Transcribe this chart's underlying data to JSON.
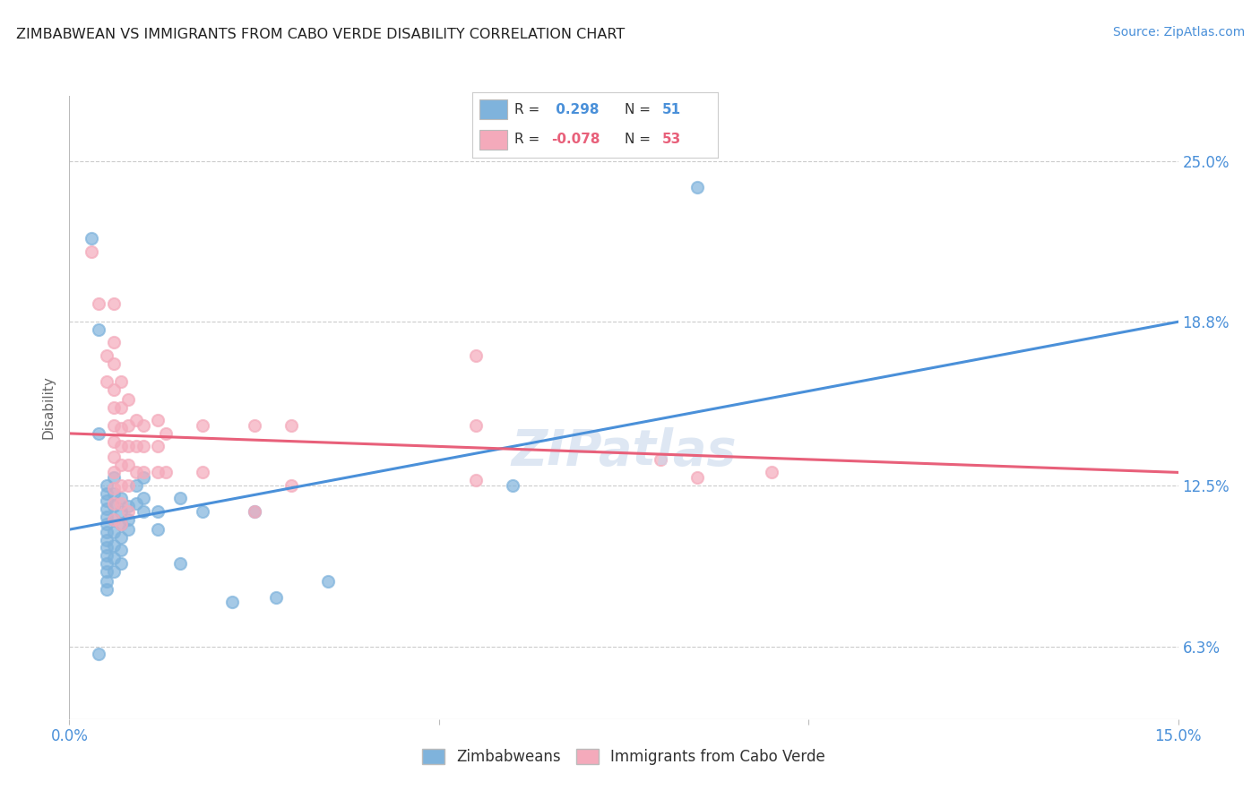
{
  "title": "ZIMBABWEAN VS IMMIGRANTS FROM CABO VERDE DISABILITY CORRELATION CHART",
  "source": "Source: ZipAtlas.com",
  "ylabel": "Disability",
  "ytick_labels": [
    "6.3%",
    "12.5%",
    "18.8%",
    "25.0%"
  ],
  "ytick_values": [
    0.063,
    0.125,
    0.188,
    0.25
  ],
  "xlim": [
    0.0,
    0.15
  ],
  "ylim": [
    0.035,
    0.275
  ],
  "legend_blue_label": "Zimbabweans",
  "legend_pink_label": "Immigrants from Cabo Verde",
  "r_blue": 0.298,
  "n_blue": 51,
  "r_pink": -0.078,
  "n_pink": 53,
  "blue_color": "#7FB3DC",
  "pink_color": "#F4AABB",
  "blue_line_color": "#4A90D9",
  "pink_line_color": "#E8607A",
  "blue_line": [
    [
      0.0,
      0.108
    ],
    [
      0.15,
      0.188
    ]
  ],
  "pink_line": [
    [
      0.0,
      0.145
    ],
    [
      0.15,
      0.13
    ]
  ],
  "blue_scatter": [
    [
      0.003,
      0.22
    ],
    [
      0.004,
      0.185
    ],
    [
      0.005,
      0.125
    ],
    [
      0.005,
      0.122
    ],
    [
      0.005,
      0.119
    ],
    [
      0.005,
      0.116
    ],
    [
      0.005,
      0.113
    ],
    [
      0.005,
      0.11
    ],
    [
      0.005,
      0.107
    ],
    [
      0.005,
      0.104
    ],
    [
      0.005,
      0.101
    ],
    [
      0.005,
      0.098
    ],
    [
      0.005,
      0.095
    ],
    [
      0.005,
      0.092
    ],
    [
      0.005,
      0.088
    ],
    [
      0.005,
      0.085
    ],
    [
      0.006,
      0.128
    ],
    [
      0.006,
      0.122
    ],
    [
      0.006,
      0.117
    ],
    [
      0.006,
      0.112
    ],
    [
      0.006,
      0.107
    ],
    [
      0.006,
      0.102
    ],
    [
      0.006,
      0.097
    ],
    [
      0.006,
      0.092
    ],
    [
      0.007,
      0.12
    ],
    [
      0.007,
      0.115
    ],
    [
      0.007,
      0.11
    ],
    [
      0.007,
      0.105
    ],
    [
      0.007,
      0.1
    ],
    [
      0.007,
      0.095
    ],
    [
      0.008,
      0.117
    ],
    [
      0.008,
      0.112
    ],
    [
      0.008,
      0.108
    ],
    [
      0.009,
      0.125
    ],
    [
      0.009,
      0.118
    ],
    [
      0.01,
      0.128
    ],
    [
      0.01,
      0.12
    ],
    [
      0.01,
      0.115
    ],
    [
      0.012,
      0.115
    ],
    [
      0.012,
      0.108
    ],
    [
      0.015,
      0.12
    ],
    [
      0.015,
      0.095
    ],
    [
      0.018,
      0.115
    ],
    [
      0.022,
      0.08
    ],
    [
      0.025,
      0.115
    ],
    [
      0.028,
      0.082
    ],
    [
      0.035,
      0.088
    ],
    [
      0.06,
      0.125
    ],
    [
      0.085,
      0.24
    ],
    [
      0.004,
      0.06
    ],
    [
      0.004,
      0.145
    ]
  ],
  "pink_scatter": [
    [
      0.003,
      0.215
    ],
    [
      0.004,
      0.195
    ],
    [
      0.005,
      0.175
    ],
    [
      0.005,
      0.165
    ],
    [
      0.006,
      0.195
    ],
    [
      0.006,
      0.18
    ],
    [
      0.006,
      0.172
    ],
    [
      0.006,
      0.162
    ],
    [
      0.006,
      0.155
    ],
    [
      0.006,
      0.148
    ],
    [
      0.006,
      0.142
    ],
    [
      0.006,
      0.136
    ],
    [
      0.006,
      0.13
    ],
    [
      0.006,
      0.124
    ],
    [
      0.006,
      0.118
    ],
    [
      0.006,
      0.112
    ],
    [
      0.007,
      0.165
    ],
    [
      0.007,
      0.155
    ],
    [
      0.007,
      0.147
    ],
    [
      0.007,
      0.14
    ],
    [
      0.007,
      0.133
    ],
    [
      0.007,
      0.125
    ],
    [
      0.007,
      0.118
    ],
    [
      0.007,
      0.11
    ],
    [
      0.008,
      0.158
    ],
    [
      0.008,
      0.148
    ],
    [
      0.008,
      0.14
    ],
    [
      0.008,
      0.133
    ],
    [
      0.008,
      0.125
    ],
    [
      0.008,
      0.115
    ],
    [
      0.009,
      0.15
    ],
    [
      0.009,
      0.14
    ],
    [
      0.009,
      0.13
    ],
    [
      0.01,
      0.148
    ],
    [
      0.01,
      0.14
    ],
    [
      0.01,
      0.13
    ],
    [
      0.012,
      0.15
    ],
    [
      0.012,
      0.14
    ],
    [
      0.012,
      0.13
    ],
    [
      0.013,
      0.145
    ],
    [
      0.013,
      0.13
    ],
    [
      0.018,
      0.148
    ],
    [
      0.018,
      0.13
    ],
    [
      0.025,
      0.148
    ],
    [
      0.025,
      0.115
    ],
    [
      0.03,
      0.148
    ],
    [
      0.03,
      0.125
    ],
    [
      0.055,
      0.175
    ],
    [
      0.055,
      0.148
    ],
    [
      0.055,
      0.127
    ],
    [
      0.08,
      0.135
    ],
    [
      0.085,
      0.128
    ],
    [
      0.095,
      0.13
    ]
  ],
  "background_color": "#FFFFFF",
  "grid_color": "#CCCCCC"
}
